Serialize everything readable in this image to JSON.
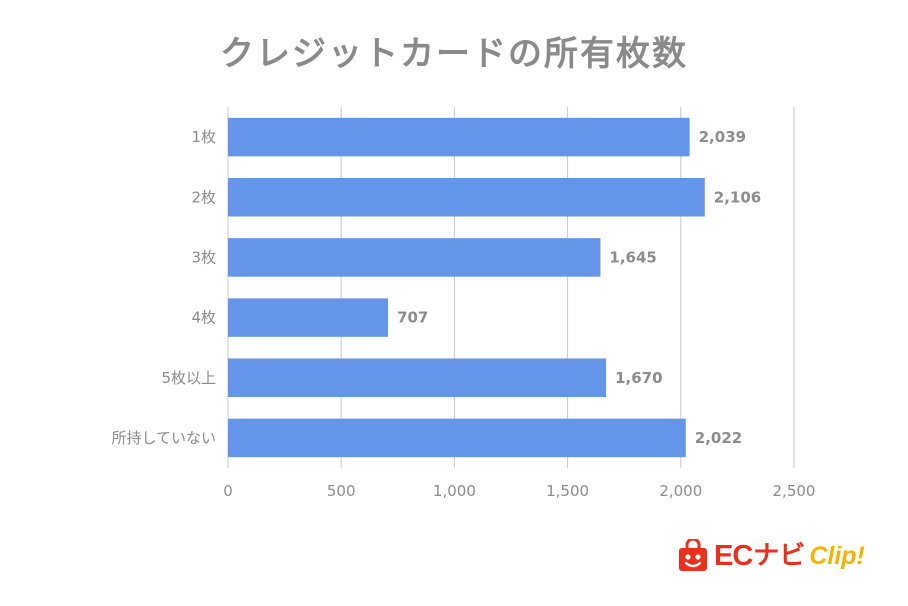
{
  "chart_data": {
    "type": "bar",
    "orientation": "horizontal",
    "title": "クレジットカードの所有枚数",
    "categories": [
      "1枚",
      "2枚",
      "3枚",
      "4枚",
      "5枚以上",
      "所持していない"
    ],
    "values": [
      2039,
      2106,
      1645,
      707,
      1670,
      2022
    ],
    "data_labels": [
      "2,039",
      "2,106",
      "1,645",
      "707",
      "1,670",
      "2,022"
    ],
    "x_ticks": [
      0,
      500,
      1000,
      1500,
      2000,
      2500
    ],
    "x_tick_labels": [
      "0",
      "500",
      "1,000",
      "1,500",
      "2,000",
      "2,500"
    ],
    "xlim": [
      0,
      2500
    ],
    "grid": true,
    "legend": "none",
    "bar_color": "#6495e8",
    "grid_color": "#c8c8c8"
  },
  "logo": {
    "ec": "EC",
    "navi": "ナビ",
    "clip": "Clip!",
    "primary_color": "#e9301d",
    "accent_color": "#f4b400"
  }
}
